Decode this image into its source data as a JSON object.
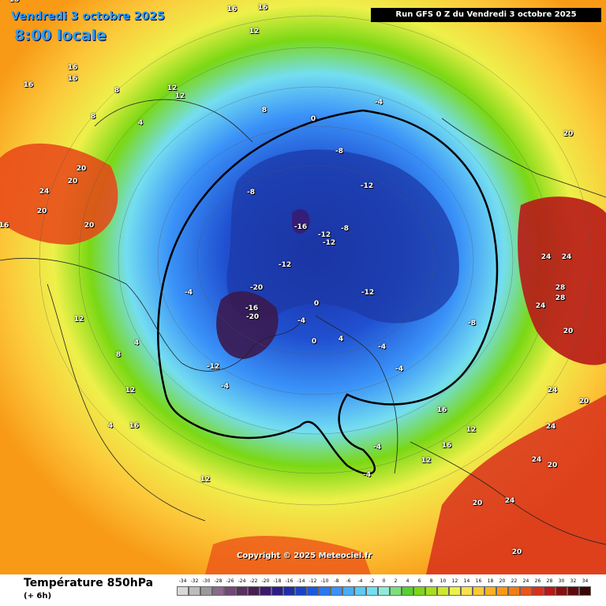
{
  "header": {
    "date": "Vendredi 3 octobre 2025",
    "time": "8:00 locale",
    "run_info": "Run GFS 0 Z du Vendredi 3 octobre 2025",
    "copyright": "Copyright © 2025 Meteociel.fr"
  },
  "legend": {
    "title": "Température 850hPa",
    "subtitle": "(+ 6h)",
    "scale_values": [
      "-34",
      "-32",
      "-30",
      "-28",
      "-26",
      "-24",
      "-22",
      "-20",
      "-18",
      "-16",
      "-14",
      "-12",
      "-10",
      "-8",
      "-6",
      "-4",
      "-2",
      "0",
      "2",
      "4",
      "6",
      "8",
      "10",
      "12",
      "14",
      "16",
      "18",
      "20",
      "22",
      "24",
      "26",
      "28",
      "30",
      "32",
      "34"
    ],
    "scale_colors": [
      "#d8d8d8",
      "#bcbcbc",
      "#9a9a9a",
      "#8a6a8a",
      "#6e4a74",
      "#5a2e62",
      "#46204e",
      "#3a1a70",
      "#2d1c88",
      "#1e2ea8",
      "#1a44c8",
      "#1a5ae0",
      "#2a78f0",
      "#3a92f8",
      "#48aef8",
      "#5ccaf4",
      "#74def0",
      "#8cecd8",
      "#7ae07a",
      "#58d030",
      "#7ad814",
      "#a6e01c",
      "#cce830",
      "#eef04a",
      "#fbe050",
      "#fcc83a",
      "#fcb024",
      "#f89a16",
      "#f47c14",
      "#ec5418",
      "#d8301c",
      "#b81818",
      "#8a0e10",
      "#5e0a0c",
      "#3a0606"
    ]
  },
  "labels": [
    {
      "t": "16",
      "k": "w"
    },
    {
      "t": "16",
      "k": "w"
    },
    {
      "t": "16",
      "k": "w"
    },
    {
      "t": "16",
      "k": "w"
    },
    {
      "t": "16",
      "k": "w"
    },
    {
      "t": "16",
      "k": "w"
    },
    {
      "t": "12",
      "k": "w"
    },
    {
      "t": "12",
      "k": "w"
    },
    {
      "t": "12",
      "k": "w"
    },
    {
      "t": "8",
      "k": "w"
    },
    {
      "t": "8",
      "k": "w"
    },
    {
      "t": "4",
      "k": "w"
    },
    {
      "t": "20",
      "k": "w"
    },
    {
      "t": "20",
      "k": "w"
    },
    {
      "t": "24",
      "k": "w"
    },
    {
      "t": "20",
      "k": "w"
    },
    {
      "t": "20",
      "k": "w"
    },
    {
      "t": "16",
      "k": "w"
    },
    {
      "t": "0",
      "k": "w"
    },
    {
      "t": "-4",
      "k": "w"
    },
    {
      "t": "-8",
      "k": "w"
    },
    {
      "t": "-8",
      "k": "w"
    },
    {
      "t": "-12",
      "k": "w"
    },
    {
      "t": "-16",
      "k": "w"
    },
    {
      "t": "-12",
      "k": "w"
    },
    {
      "t": "-12",
      "k": "w"
    },
    {
      "t": "-8",
      "k": "w"
    },
    {
      "t": "-12",
      "k": "w"
    },
    {
      "t": "-12",
      "k": "w"
    },
    {
      "t": "-8",
      "k": "w"
    },
    {
      "t": "-20",
      "k": "w"
    },
    {
      "t": "-16",
      "k": "w"
    },
    {
      "t": "-20",
      "k": "w"
    },
    {
      "t": "-12",
      "k": "w"
    },
    {
      "t": "-4",
      "k": "w"
    },
    {
      "t": "-4",
      "k": "w"
    },
    {
      "t": "0",
      "k": "w"
    },
    {
      "t": "0",
      "k": "w"
    },
    {
      "t": "-4",
      "k": "w"
    },
    {
      "t": "-4",
      "k": "w"
    },
    {
      "t": "-4",
      "k": "w"
    },
    {
      "t": "-4",
      "k": "w"
    },
    {
      "t": "4",
      "k": "w"
    },
    {
      "t": "4",
      "k": "w"
    },
    {
      "t": "8",
      "k": "w"
    },
    {
      "t": "12",
      "k": "w"
    },
    {
      "t": "12",
      "k": "w"
    },
    {
      "t": "16",
      "k": "w"
    },
    {
      "t": "20",
      "k": "w"
    },
    {
      "t": "24",
      "k": "w"
    },
    {
      "t": "24",
      "k": "w"
    },
    {
      "t": "28",
      "k": "w"
    },
    {
      "t": "28",
      "k": "w"
    },
    {
      "t": "24",
      "k": "w"
    },
    {
      "t": "20",
      "k": "w"
    },
    {
      "t": "24",
      "k": "w"
    },
    {
      "t": "24",
      "k": "w"
    },
    {
      "t": "24",
      "k": "w"
    },
    {
      "t": "20",
      "k": "w"
    },
    {
      "t": "16",
      "k": "w"
    },
    {
      "t": "12",
      "k": "w"
    },
    {
      "t": "12",
      "k": "w"
    },
    {
      "t": "16",
      "k": "w"
    },
    {
      "t": "20",
      "k": "w"
    },
    {
      "t": "20",
      "k": "w"
    },
    {
      "t": "24",
      "k": "w"
    },
    {
      "t": "20",
      "k": "w"
    },
    {
      "t": "12",
      "k": "w"
    },
    {
      "t": "8",
      "k": "w"
    },
    {
      "t": "4",
      "k": "w"
    },
    {
      "t": "0",
      "k": "w"
    },
    {
      "t": "-4",
      "k": "w"
    }
  ]
}
